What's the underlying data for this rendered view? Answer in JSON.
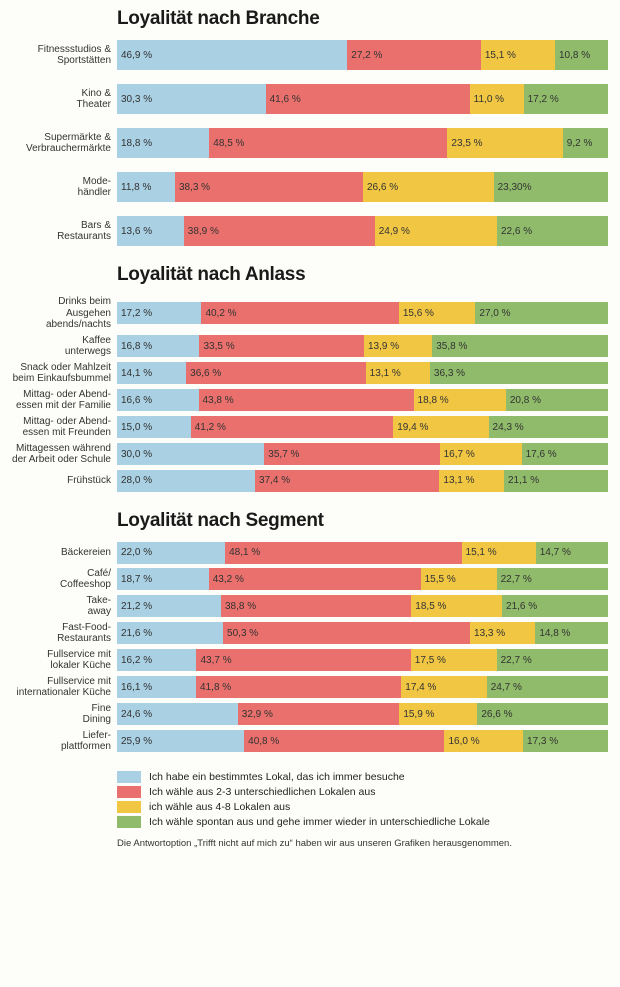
{
  "colors": {
    "c0": "#a9d0e3",
    "c1": "#e9706c",
    "c2": "#f0c643",
    "c3": "#8fbb6a",
    "bg": "#fdfdf9"
  },
  "value_suffix": " %",
  "sections": [
    {
      "title": "Loyalität nach Branche",
      "style": "tall",
      "rows": [
        {
          "label": "Fitnessstudios &\nSportstätten",
          "values": [
            46.9,
            27.2,
            15.1,
            10.8
          ]
        },
        {
          "label": "Kino &\nTheater",
          "values": [
            30.3,
            41.6,
            11.0,
            17.2
          ]
        },
        {
          "label": "Supermärkte &\nVerbrauchermärkte",
          "values": [
            18.8,
            48.5,
            23.5,
            9.2
          ]
        },
        {
          "label": "Mode-\nhändler",
          "values": [
            11.8,
            38.3,
            26.6,
            23.3
          ],
          "labels": [
            "11,8 %",
            "38,3 %",
            "26,6 %",
            "23,30%"
          ]
        },
        {
          "label": "Bars &\nRestaurants",
          "values": [
            13.6,
            38.9,
            24.9,
            22.6
          ]
        }
      ]
    },
    {
      "title": "Loyalität nach Anlass",
      "style": "tight",
      "rows": [
        {
          "label": "Drinks beim Ausgehen\nabends/nachts",
          "values": [
            17.2,
            40.2,
            15.6,
            27.0
          ]
        },
        {
          "label": "Kaffee\nunterwegs",
          "values": [
            16.8,
            33.5,
            13.9,
            35.8
          ]
        },
        {
          "label": "Snack oder Mahlzeit\nbeim Einkaufsbummel",
          "values": [
            14.1,
            36.6,
            13.1,
            36.3
          ]
        },
        {
          "label": "Mittag- oder Abend-\nessen mit der Familie",
          "values": [
            16.6,
            43.8,
            18.8,
            20.8
          ]
        },
        {
          "label": "Mittag- oder Abend-\nessen mit Freunden",
          "values": [
            15.0,
            41.2,
            19.4,
            24.3
          ]
        },
        {
          "label": "Mittagessen während\nder Arbeit oder Schule",
          "values": [
            30.0,
            35.7,
            16.7,
            17.6
          ]
        },
        {
          "label": "Frühstück",
          "values": [
            28.0,
            37.4,
            13.1,
            21.1
          ]
        }
      ]
    },
    {
      "title": "Loyalität nach Segment",
      "style": "tight",
      "rows": [
        {
          "label": "Bäckereien",
          "values": [
            22.0,
            48.1,
            15.1,
            14.7
          ]
        },
        {
          "label": "Café/\nCoffeeshop",
          "values": [
            18.7,
            43.2,
            15.5,
            22.7
          ]
        },
        {
          "label": "Take-\naway",
          "values": [
            21.2,
            38.8,
            18.5,
            21.6
          ]
        },
        {
          "label": "Fast-Food-\nRestaurants",
          "values": [
            21.6,
            50.3,
            13.3,
            14.8
          ]
        },
        {
          "label": "Fullservice mit\nlokaler Küche",
          "values": [
            16.2,
            43.7,
            17.5,
            22.7
          ]
        },
        {
          "label": "Fullservice mit\ninternationaler Küche",
          "values": [
            16.1,
            41.8,
            17.4,
            24.7
          ]
        },
        {
          "label": "Fine\nDining",
          "values": [
            24.6,
            32.9,
            15.9,
            26.6
          ]
        },
        {
          "label": "Liefer-\nplattformen",
          "values": [
            25.9,
            40.8,
            16.0,
            17.3
          ]
        }
      ]
    }
  ],
  "legend": [
    "Ich habe ein bestimmtes Lokal, das ich immer besuche",
    "Ich wähle aus 2-3 unterschiedlichen Lokalen aus",
    "ich wähle aus 4-8 Lokalen aus",
    "Ich wähle spontan aus und gehe immer wieder in unterschiedliche Lokale"
  ],
  "footnote": "Die Antwortoption „Trifft nicht auf mich zu“ haben wir aus unseren Grafiken herausgenommen."
}
